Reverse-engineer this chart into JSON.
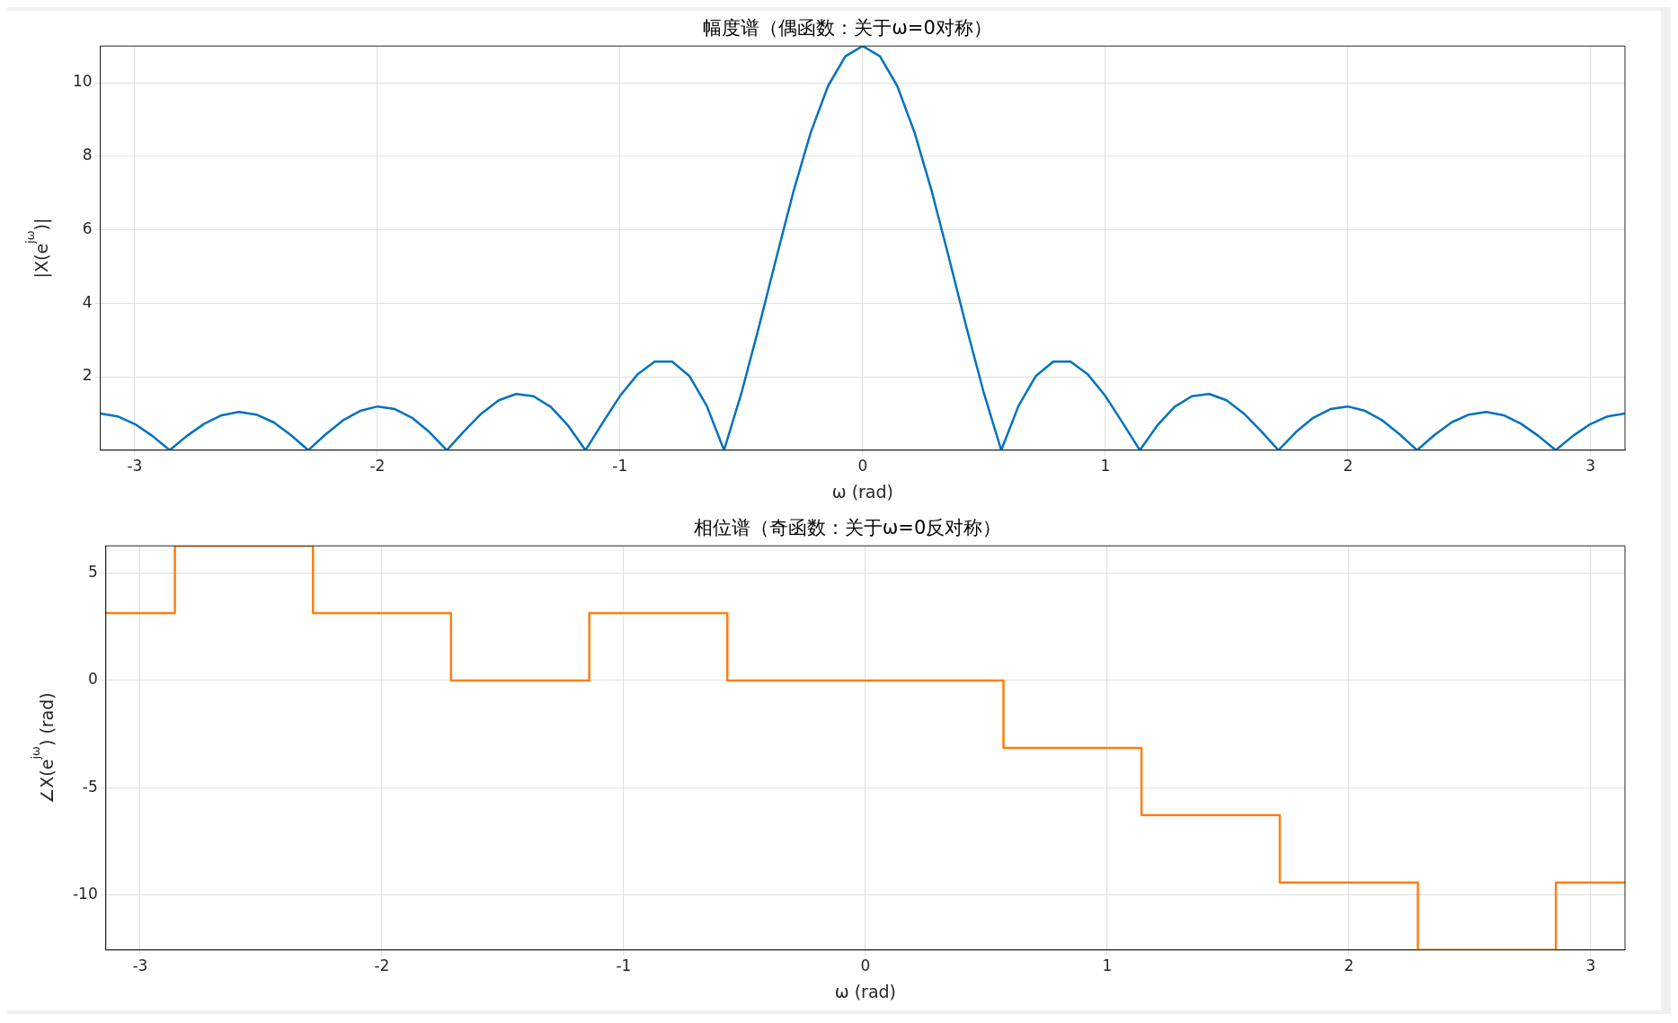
{
  "chart_data": [
    {
      "type": "line",
      "title": "幅度谱（偶函数：关于ω=0对称）",
      "xlabel": "ω (rad)",
      "ylabel": "|X(e$^{jω}$)|",
      "xlim": [
        -3.1416,
        3.1416
      ],
      "xticks": [
        -3,
        -2,
        -1,
        0,
        1,
        2,
        3
      ],
      "ylim": [
        0,
        11
      ],
      "yticks": [
        2,
        4,
        6,
        8,
        10
      ],
      "grid": true,
      "legend": false,
      "x": [
        -3.1416,
        -3.0702,
        -2.9988,
        -2.9274,
        -2.856,
        -2.7846,
        -2.7132,
        -2.6418,
        -2.5704,
        -2.499,
        -2.4276,
        -2.3562,
        -2.2848,
        -2.2134,
        -2.142,
        -2.0706,
        -1.9992,
        -1.9278,
        -1.8564,
        -1.785,
        -1.7136,
        -1.6422,
        -1.5708,
        -1.4994,
        -1.428,
        -1.3566,
        -1.2852,
        -1.2138,
        -1.1424,
        -1.071,
        -0.9996,
        -0.9282,
        -0.8568,
        -0.7854,
        -0.714,
        -0.6426,
        -0.5712,
        -0.4998,
        -0.4284,
        -0.357,
        -0.2856,
        -0.2142,
        -0.1428,
        -0.0714,
        0,
        0.0714,
        0.1428,
        0.2142,
        0.2856,
        0.357,
        0.4284,
        0.4998,
        0.5712,
        0.6426,
        0.714,
        0.7854,
        0.8568,
        0.9282,
        0.9996,
        1.071,
        1.1424,
        1.2138,
        1.2852,
        1.3566,
        1.428,
        1.4994,
        1.5708,
        1.6422,
        1.7136,
        1.785,
        1.8564,
        1.9278,
        1.9992,
        2.0706,
        2.142,
        2.2134,
        2.2848,
        2.3562,
        2.4276,
        2.499,
        2.5704,
        2.6418,
        2.7132,
        2.7846,
        2.856,
        2.9274,
        2.9988,
        3.0702,
        3.1416
      ],
      "series": [
        {
          "color": "#0072bd",
          "values": [
            1.0,
            0.92,
            0.71,
            0.39,
            0,
            0.39,
            0.72,
            0.95,
            1.04,
            0.97,
            0.76,
            0.41,
            0,
            0.43,
            0.81,
            1.07,
            1.19,
            1.12,
            0.88,
            0.49,
            0,
            0.52,
            1.0,
            1.36,
            1.53,
            1.47,
            1.18,
            0.67,
            0,
            0.75,
            1.48,
            2.06,
            2.41,
            2.41,
            2.02,
            1.21,
            0,
            1.55,
            3.33,
            5.2,
            7.03,
            8.64,
            9.91,
            10.72,
            11,
            10.72,
            9.91,
            8.64,
            7.03,
            5.2,
            3.33,
            1.55,
            0,
            1.21,
            2.02,
            2.41,
            2.41,
            2.06,
            1.48,
            0.75,
            0,
            0.67,
            1.18,
            1.47,
            1.53,
            1.36,
            1.0,
            0.52,
            0,
            0.49,
            0.88,
            1.12,
            1.19,
            1.07,
            0.81,
            0.43,
            0,
            0.41,
            0.76,
            0.97,
            1.04,
            0.95,
            0.72,
            0.39,
            0,
            0.39,
            0.71,
            0.92,
            1.0
          ]
        }
      ]
    },
    {
      "type": "step",
      "title": "相位谱（奇函数：关于ω=0反对称）",
      "xlabel": "ω (rad)",
      "ylabel": "∠X(e$^{jω}$) (rad)",
      "xlim": [
        -3.1416,
        3.1416
      ],
      "xticks": [
        -3,
        -2,
        -1,
        0,
        1,
        2,
        3
      ],
      "ylim": [
        -12.57,
        6.28
      ],
      "yticks": [
        -10,
        -5,
        0,
        5
      ],
      "grid": true,
      "legend": false,
      "x": [
        -3.1416,
        -2.856,
        -2.285,
        -1.714,
        -1.142,
        -0.571,
        0.571,
        1.142,
        1.714,
        2.285,
        2.856,
        3.1416
      ],
      "series": [
        {
          "color": "#ff7f0e",
          "values": [
            3.14,
            6.28,
            3.14,
            0,
            3.14,
            0,
            -3.14,
            -6.28,
            -9.42,
            -12.57,
            -9.42,
            -9.42
          ]
        }
      ]
    }
  ]
}
